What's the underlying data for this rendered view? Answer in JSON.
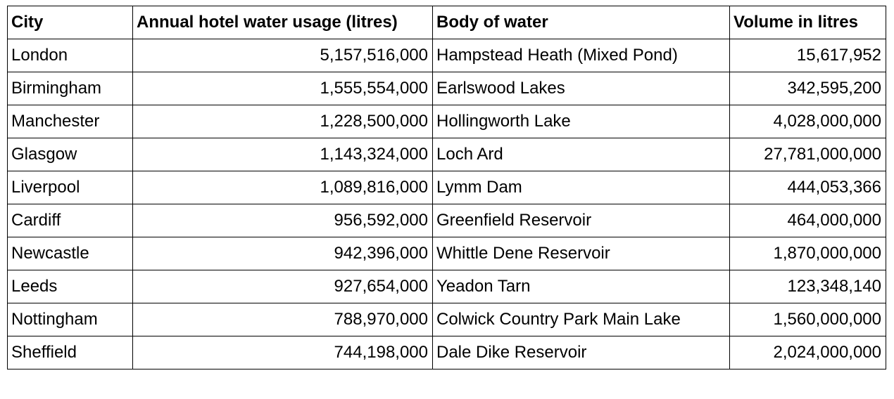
{
  "table": {
    "header": [
      "City",
      "Annual hotel water usage (litres)",
      "Body of water",
      "Volume in litres"
    ],
    "rows": [
      [
        "London",
        "5,157,516,000",
        "Hampstead Heath (Mixed Pond)",
        "15,617,952"
      ],
      [
        "Birmingham",
        "1,555,554,000",
        "Earlswood Lakes",
        "342,595,200"
      ],
      [
        "Manchester",
        "1,228,500,000",
        "Hollingworth Lake",
        "4,028,000,000"
      ],
      [
        "Glasgow",
        "1,143,324,000",
        "Loch Ard",
        "27,781,000,000"
      ],
      [
        "Liverpool",
        "1,089,816,000",
        "Lymm Dam",
        "444,053,366"
      ],
      [
        "Cardiff",
        "956,592,000",
        "Greenfield Reservoir",
        "464,000,000"
      ],
      [
        "Newcastle",
        "942,396,000",
        "Whittle Dene Reservoir",
        "1,870,000,000"
      ],
      [
        "Leeds",
        "927,654,000",
        "Yeadon Tarn",
        "123,348,140"
      ],
      [
        "Nottingham",
        "788,970,000",
        "Colwick Country Park Main Lake",
        "1,560,000,000"
      ],
      [
        "Sheffield",
        "744,198,000",
        "Dale Dike Reservoir",
        "2,024,000,000"
      ]
    ]
  }
}
